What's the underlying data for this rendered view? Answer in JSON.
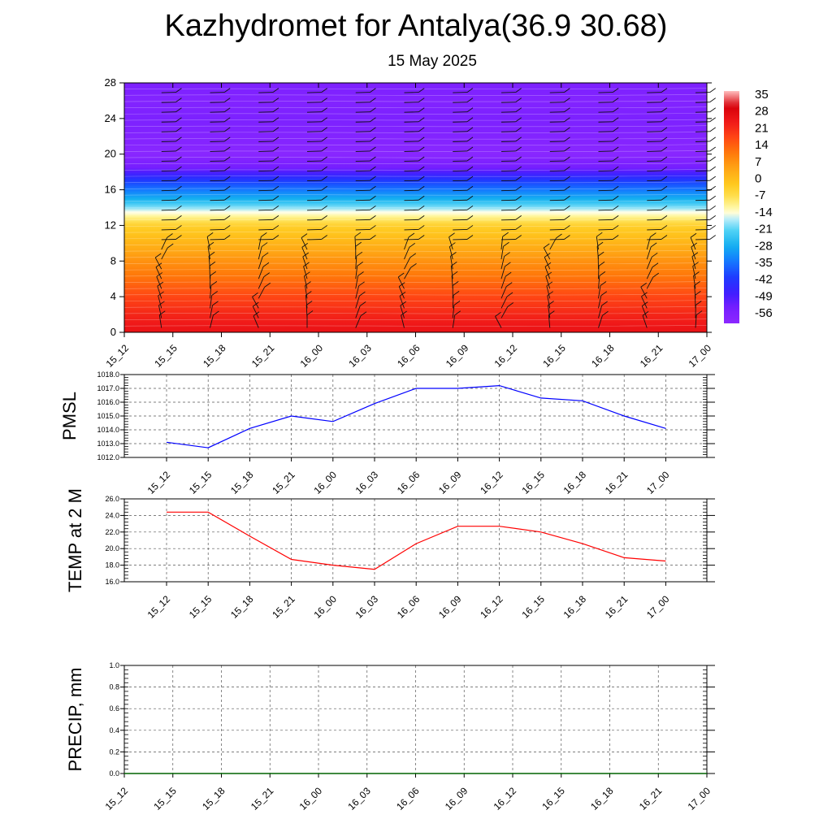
{
  "title": "Kazhydromet for Antalya(36.9 30.68)",
  "subtitle": "15 May 2025",
  "chart_data": [
    {
      "type": "heatmap",
      "description_text": "",
      "time_labels": [
        "15_12",
        "15_15",
        "15_18",
        "15_21",
        "16_00",
        "16_03",
        "16_06",
        "16_09",
        "16_12",
        "16_15",
        "16_18",
        "16_21",
        "17_00"
      ],
      "y_ticks": [
        0,
        4,
        8,
        12,
        16,
        20,
        24,
        28
      ],
      "ylim": [
        0,
        28
      ],
      "temperature_profile": {
        "levels": [
          0,
          2,
          4,
          6,
          8,
          10,
          12,
          13.5,
          15,
          17,
          18.5,
          20,
          22,
          24,
          26,
          28
        ],
        "values": [
          30,
          26,
          21,
          15,
          10,
          4,
          -2,
          -14,
          -28,
          -42,
          -56,
          -62,
          -60,
          -58,
          -60,
          -58
        ]
      },
      "colorbar": {
        "labels": [
          "35",
          "28",
          "21",
          "14",
          "7",
          "0",
          "-7",
          "-14",
          "-21",
          "-28",
          "-35",
          "-42",
          "-49",
          "-56"
        ],
        "vmin": -63,
        "vmax": 42
      },
      "wind_barbs": "present"
    },
    {
      "type": "line",
      "ylabel": "PMSL",
      "x": [
        "15_12",
        "15_15",
        "15_18",
        "15_21",
        "16_00",
        "16_03",
        "16_06",
        "16_09",
        "16_12",
        "16_15",
        "16_18",
        "16_21",
        "17_00"
      ],
      "values": [
        1013.1,
        1012.7,
        1014.1,
        1015.0,
        1014.6,
        1015.9,
        1017.0,
        1017.0,
        1017.2,
        1016.3,
        1016.1,
        1015.0,
        1014.1
      ],
      "ylim": [
        1012.0,
        1018.0
      ],
      "y_ticks": [
        "1012.0",
        "1013.0",
        "1014.0",
        "1015.0",
        "1016.0",
        "1017.0",
        "1018.0"
      ],
      "color": "#0000ff"
    },
    {
      "type": "line",
      "ylabel": "TEMP at 2 M",
      "x": [
        "15_12",
        "15_15",
        "15_18",
        "15_21",
        "16_00",
        "16_03",
        "16_06",
        "16_09",
        "16_12",
        "16_15",
        "16_18",
        "16_21",
        "17_00"
      ],
      "values": [
        24.4,
        24.4,
        21.5,
        18.7,
        18.0,
        17.5,
        20.6,
        22.7,
        22.7,
        22.0,
        20.6,
        18.9,
        18.5
      ],
      "ylim": [
        16.0,
        26.0
      ],
      "y_ticks": [
        "16.0",
        "18.0",
        "20.0",
        "22.0",
        "24.0",
        "26.0"
      ],
      "color": "#ff0000"
    },
    {
      "type": "line",
      "ylabel": "PRECIP, mm",
      "x": [
        "15_12",
        "15_15",
        "15_18",
        "15_21",
        "16_00",
        "16_03",
        "16_06",
        "16_09",
        "16_12",
        "16_15",
        "16_18",
        "16_21",
        "17_00"
      ],
      "values": [
        0,
        0,
        0,
        0,
        0,
        0,
        0,
        0,
        0,
        0,
        0,
        0,
        0
      ],
      "ylim": [
        0.0,
        1.0
      ],
      "y_ticks": [
        "0.0",
        "0.2",
        "0.4",
        "0.6",
        "0.8",
        "1.0"
      ],
      "color": "#006400"
    }
  ]
}
